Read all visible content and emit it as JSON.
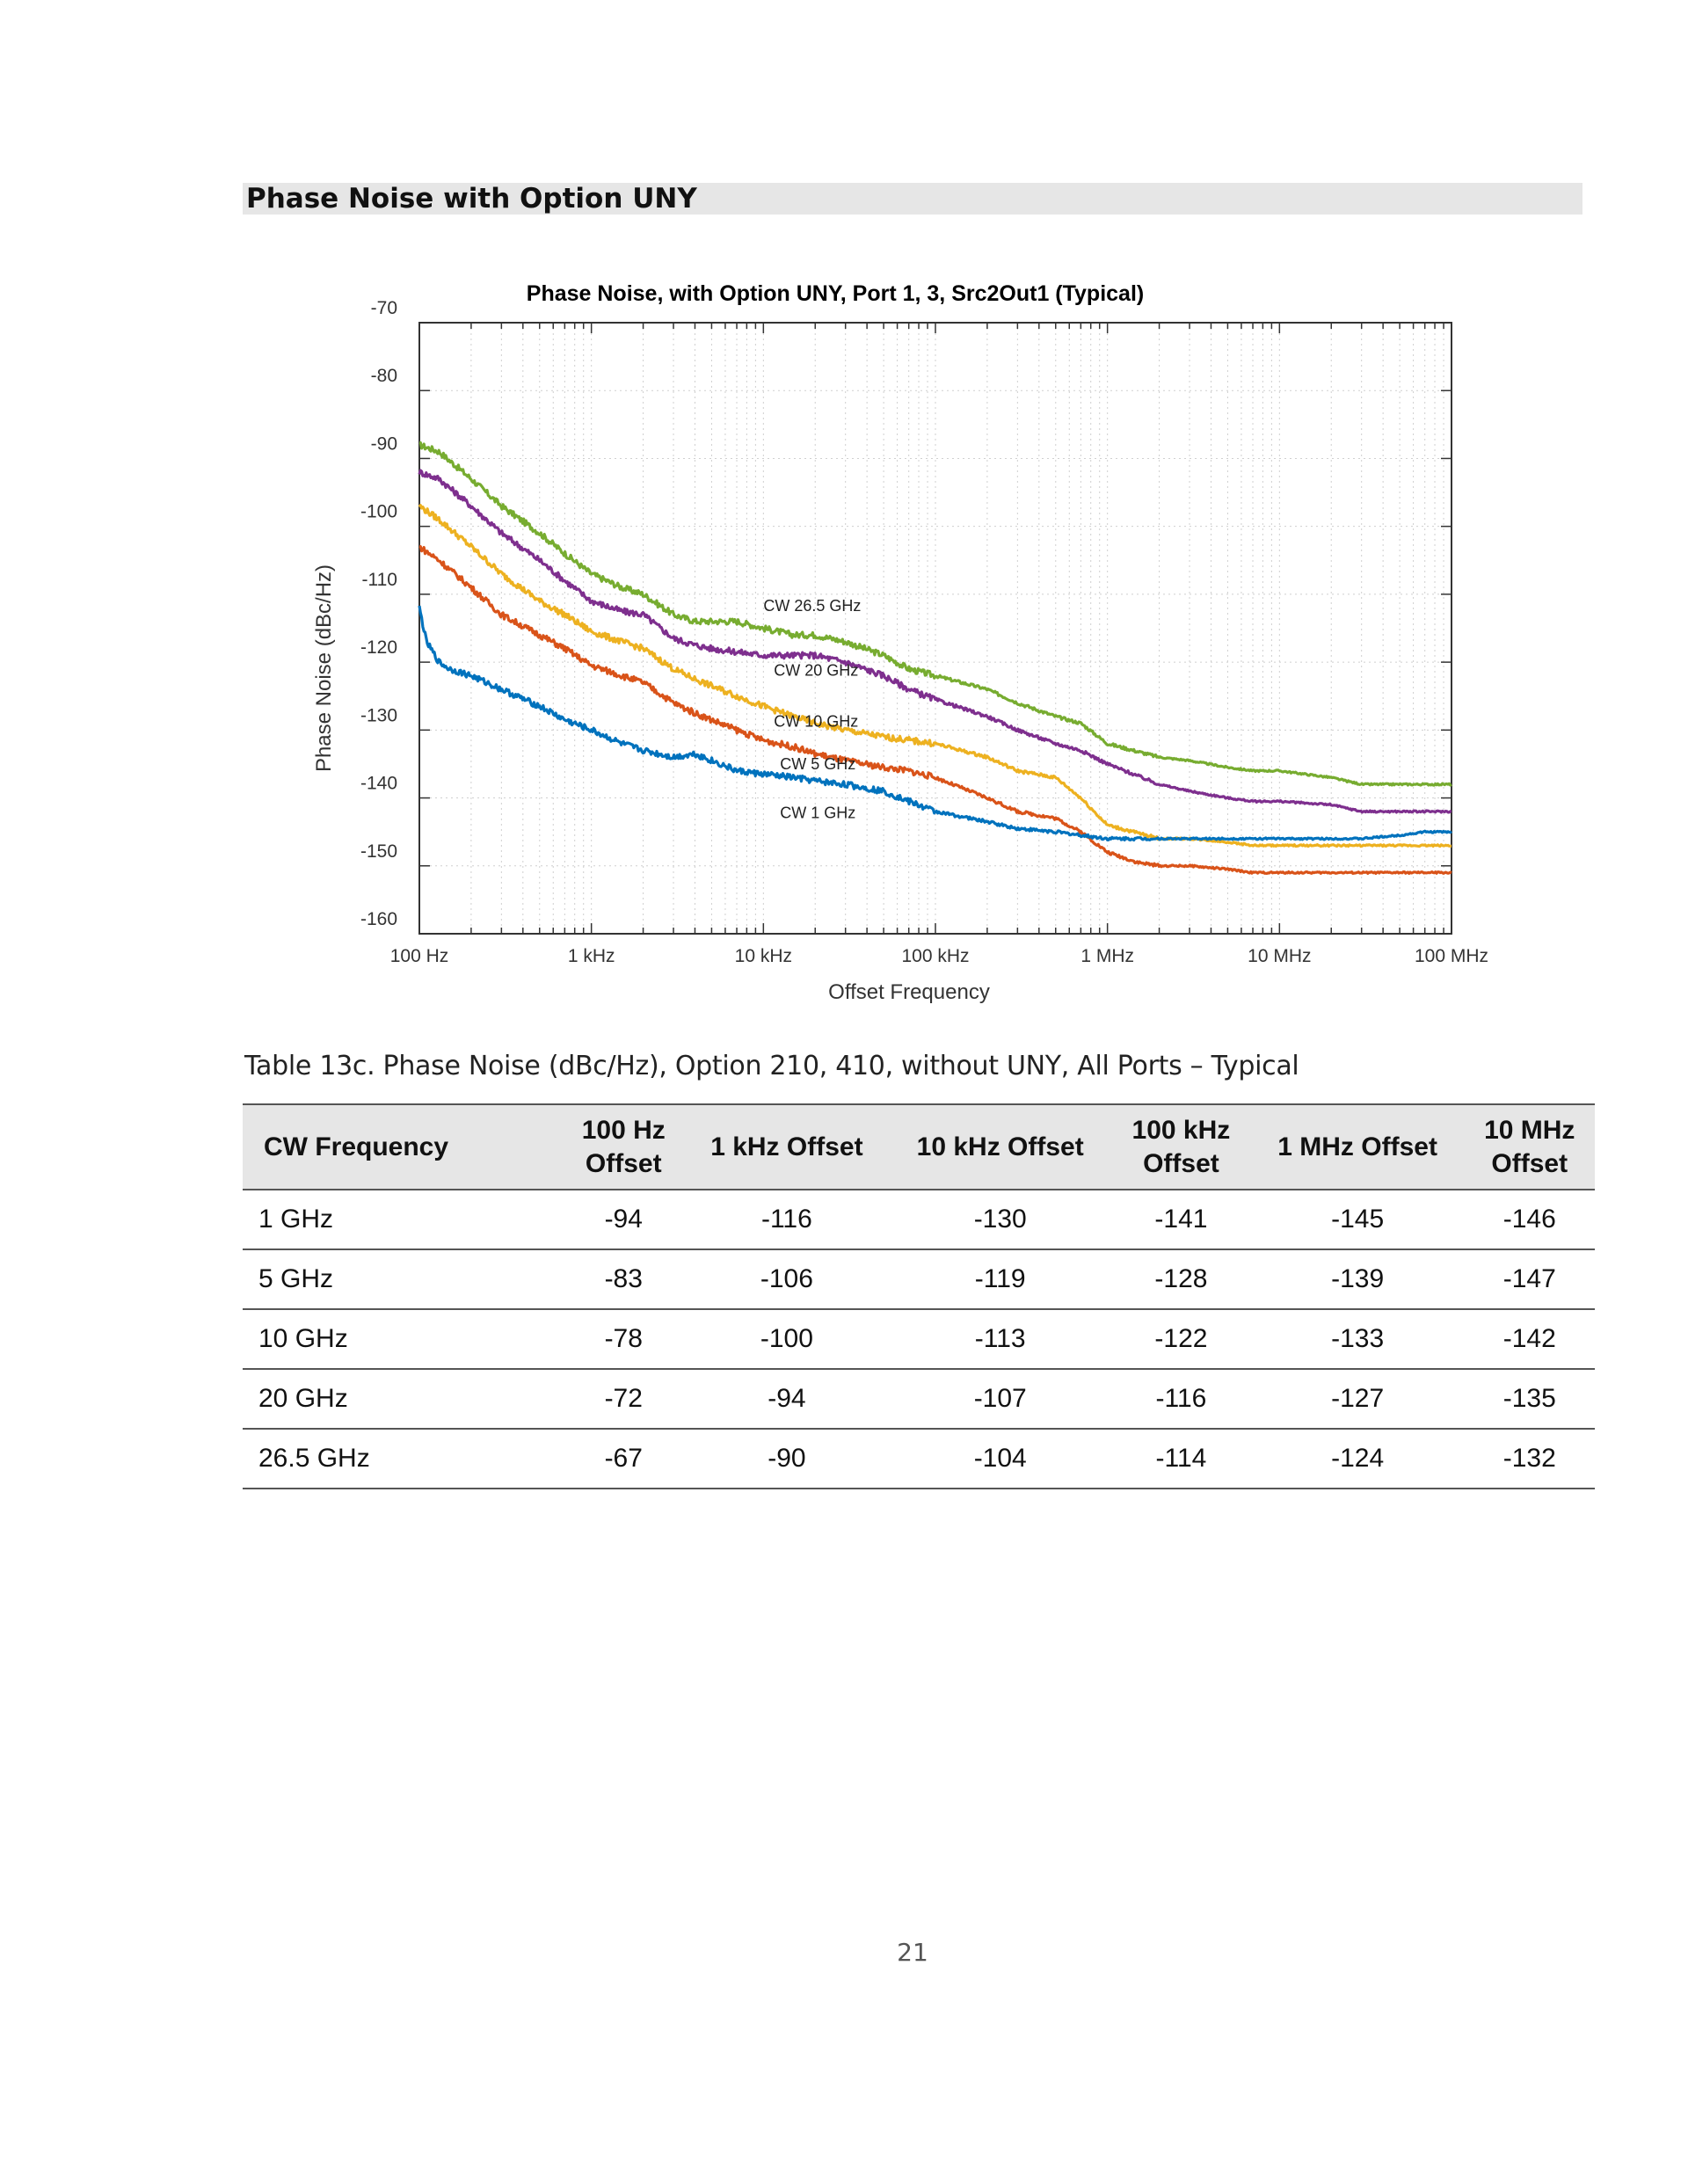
{
  "section_title": "Phase Noise with Option UNY",
  "chart_data": {
    "type": "line",
    "title": "Phase Noise, with Option UNY, Port 1, 3, Src2Out1 (Typical)",
    "xlabel": "Offset Frequency",
    "ylabel": "Phase Noise (dBc/Hz)",
    "xscale": "log",
    "xlim": [
      100,
      100000000
    ],
    "ylim": [
      -160,
      -70
    ],
    "grid": true,
    "x_tick_labels": [
      "100 Hz",
      "1 kHz",
      "10 kHz",
      "100 kHz",
      "1 MHz",
      "10 MHz",
      "100 MHz"
    ],
    "y_tick_labels": [
      "-70",
      "-80",
      "-90",
      "-100",
      "-110",
      "-120",
      "-130",
      "-140",
      "-150",
      "-160"
    ],
    "series": [
      {
        "name": "CW 26.5 GHz",
        "color": "#77ac30",
        "x": [
          100,
          130,
          200,
          300,
          500,
          700,
          1000,
          1500,
          2000,
          3000,
          4000,
          5000,
          7000,
          10000,
          15000,
          20000,
          30000,
          50000,
          70000,
          100000,
          200000,
          300000,
          500000,
          700000,
          1000000,
          2000000,
          3000000,
          5000000,
          7000000,
          10000000,
          20000000,
          30000000,
          50000000,
          70000000,
          100000000
        ],
        "y": [
          -88,
          -89,
          -93,
          -97,
          -101,
          -104,
          -107,
          -109,
          -110,
          -113,
          -114,
          -114,
          -114,
          -115,
          -116,
          -116,
          -117,
          -119,
          -121,
          -122,
          -124,
          -126,
          -128,
          -129,
          -132,
          -134,
          -134.5,
          -135.5,
          -136,
          -136,
          -137,
          -138,
          -138,
          -138,
          -138
        ]
      },
      {
        "name": "CW 20 GHz",
        "color": "#7e2f8e",
        "x": [
          100,
          130,
          200,
          300,
          500,
          700,
          1000,
          1500,
          2000,
          3000,
          4000,
          5000,
          7000,
          10000,
          15000,
          20000,
          30000,
          50000,
          70000,
          100000,
          200000,
          300000,
          500000,
          700000,
          1000000,
          2000000,
          3000000,
          5000000,
          7000000,
          10000000,
          20000000,
          30000000,
          50000000,
          70000000,
          100000000
        ],
        "y": [
          -92,
          -93,
          -97,
          -101,
          -105,
          -108,
          -111,
          -112.5,
          -113,
          -116.5,
          -117.5,
          -118,
          -118.5,
          -119,
          -119,
          -119,
          -120,
          -122,
          -124,
          -125.5,
          -128,
          -130,
          -132,
          -133,
          -135,
          -138,
          -139,
          -140,
          -140.5,
          -140.5,
          -141,
          -142,
          -142,
          -142,
          -142
        ]
      },
      {
        "name": "CW 10 GHz",
        "color": "#edb120",
        "x": [
          100,
          130,
          200,
          300,
          500,
          700,
          1000,
          1500,
          2000,
          3000,
          4000,
          5000,
          7000,
          10000,
          15000,
          20000,
          30000,
          50000,
          70000,
          100000,
          200000,
          300000,
          500000,
          700000,
          1000000,
          2000000,
          3000000,
          5000000,
          7000000,
          10000000,
          20000000,
          30000000,
          50000000,
          70000000,
          100000000
        ],
        "y": [
          -97,
          -99,
          -103,
          -107,
          -111,
          -113,
          -115.5,
          -117,
          -118,
          -121,
          -122.5,
          -123.5,
          -125,
          -126.5,
          -128,
          -129,
          -130,
          -131,
          -131.5,
          -132,
          -134,
          -136,
          -137,
          -140,
          -144,
          -146,
          -146,
          -146.5,
          -147,
          -147,
          -147,
          -147,
          -147,
          -147,
          -147
        ]
      },
      {
        "name": "CW 5 GHz",
        "color": "#d95319",
        "x": [
          100,
          130,
          200,
          300,
          500,
          700,
          1000,
          1500,
          2000,
          3000,
          4000,
          5000,
          7000,
          10000,
          15000,
          20000,
          30000,
          50000,
          70000,
          100000,
          200000,
          300000,
          500000,
          700000,
          1000000,
          1500000,
          2000000,
          3000000,
          5000000,
          7000000,
          10000000,
          20000000,
          30000000,
          50000000,
          70000000,
          100000000
        ],
        "y": [
          -103,
          -105,
          -109,
          -113,
          -116,
          -118,
          -120.5,
          -122,
          -123,
          -126,
          -127.5,
          -128.5,
          -130,
          -131.5,
          -132.5,
          -133.5,
          -134.5,
          -135.5,
          -136,
          -137,
          -140,
          -142,
          -143,
          -145,
          -148,
          -149.5,
          -150,
          -150,
          -150.5,
          -151,
          -151,
          -151,
          -151,
          -151,
          -151,
          -151
        ]
      },
      {
        "name": "CW 1 GHz",
        "color": "#0072bd",
        "x": [
          100,
          110,
          130,
          150,
          200,
          300,
          500,
          700,
          1000,
          1500,
          2000,
          3000,
          4000,
          5000,
          7000,
          10000,
          15000,
          20000,
          30000,
          50000,
          70000,
          100000,
          200000,
          300000,
          500000,
          700000,
          1000000,
          2000000,
          3000000,
          5000000,
          7000000,
          10000000,
          20000000,
          30000000,
          50000000,
          70000000,
          100000000
        ],
        "y": [
          -112,
          -117,
          -120,
          -121,
          -122,
          -124,
          -126.5,
          -128.5,
          -130,
          -132,
          -133,
          -134,
          -133.5,
          -134.5,
          -136,
          -136.5,
          -137,
          -137.5,
          -138,
          -139,
          -140.5,
          -142,
          -143.5,
          -144.5,
          -145,
          -145.5,
          -146,
          -146,
          -146,
          -146,
          -146,
          -146,
          -146,
          -146,
          -145.5,
          -145,
          -145
        ]
      }
    ],
    "annotations": [
      {
        "text": "CW 26.5 GHz",
        "x": 10000,
        "y": -112.5
      },
      {
        "text": "CW 20 GHz",
        "x": 11500,
        "y": -122
      },
      {
        "text": "CW 10 GHz",
        "x": 11500,
        "y": -129.5
      },
      {
        "text": "CW 5 GHz",
        "x": 12500,
        "y": -135.8
      },
      {
        "text": "CW 1 GHz",
        "x": 12500,
        "y": -143
      }
    ]
  },
  "table": {
    "caption": "Table 13c. Phase Noise (dBc/Hz), Option 210, 410, without UNY, All Ports – Typical",
    "headers": [
      "CW Frequency",
      "100 Hz\nOffset",
      "1 kHz Offset",
      "10 kHz Offset",
      "100 kHz\nOffset",
      "1 MHz Offset",
      "10 MHz\nOffset"
    ],
    "rows": [
      [
        "1 GHz",
        "-94",
        "-116",
        "-130",
        "-141",
        "-145",
        "-146"
      ],
      [
        "5 GHz",
        "-83",
        "-106",
        "-119",
        "-128",
        "-139",
        "-147"
      ],
      [
        "10 GHz",
        "-78",
        "-100",
        "-113",
        "-122",
        "-133",
        "-142"
      ],
      [
        "20 GHz",
        "-72",
        "-94",
        "-107",
        "-116",
        "-127",
        "-135"
      ],
      [
        "26.5 GHz",
        "-67",
        "-90",
        "-104",
        "-114",
        "-124",
        "-132"
      ]
    ]
  },
  "page_number": "21"
}
